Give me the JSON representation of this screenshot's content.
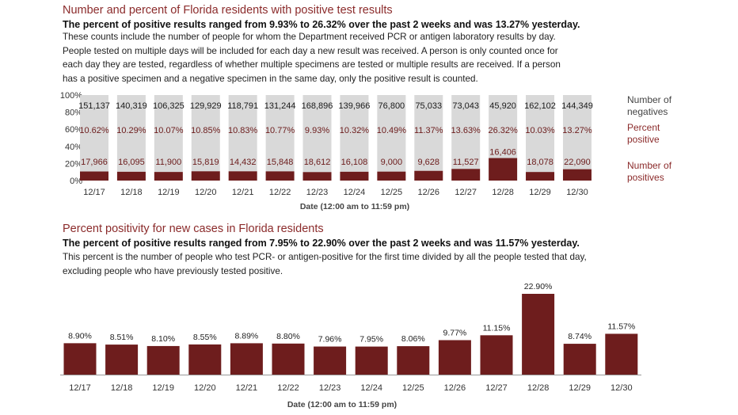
{
  "section1": {
    "heading": "Number and percent of Florida residents with positive test results",
    "subheading": "The percent of positive results ranged from 9.93% to 26.32% over the past 2 weeks and was 13.27% yesterday.",
    "body_lines": [
      "These counts include the number of people for whom the Department received PCR or antigen laboratory results by day.",
      "People tested on multiple days will be included for each day a new result was received. A person is only counted once for",
      "each day they are tested, regardless of whether multiple specimens are tested or multiple results are received. If a person",
      "has a positive specimen and a negative specimen in the same day, only the positive result is counted."
    ]
  },
  "section2": {
    "heading": "Percent positivity for new cases in Florida residents",
    "subheading": "The percent of positive results ranged from 7.95% to 22.90% over the past 2 weeks and was 11.57% yesterday.",
    "body_lines": [
      "This percent is the number of people who test PCR- or antigen-positive for the first time divided by all the people tested that day,",
      "excluding people who have previously tested positive."
    ]
  },
  "colors": {
    "positive": "#6e1d1d",
    "negative": "#d9d9d9",
    "heading": "#8b2b2b"
  },
  "chart_data": [
    {
      "type": "bar",
      "stacked": "percent",
      "categories": [
        "12/17",
        "12/18",
        "12/19",
        "12/20",
        "12/21",
        "12/22",
        "12/23",
        "12/24",
        "12/25",
        "12/26",
        "12/27",
        "12/28",
        "12/29",
        "12/30"
      ],
      "series": [
        {
          "name": "Number of positives",
          "values": [
            17966,
            16095,
            11900,
            15819,
            14432,
            15848,
            18612,
            16108,
            9000,
            9628,
            11527,
            16406,
            18078,
            22090
          ]
        },
        {
          "name": "Number of negatives",
          "values": [
            151137,
            140319,
            106325,
            129929,
            118791,
            131244,
            168896,
            139966,
            76800,
            75033,
            73043,
            45920,
            162102,
            144349
          ]
        }
      ],
      "percent_positive": {
        "name": "Percent positive",
        "labels": [
          "10.62%",
          "10.29%",
          "10.07%",
          "10.85%",
          "10.83%",
          "10.77%",
          "9.93%",
          "10.32%",
          "10.49%",
          "11.37%",
          "13.63%",
          "26.32%",
          "10.03%",
          "13.27%"
        ]
      },
      "ytick_labels": [
        "0%",
        "20%",
        "40%",
        "60%",
        "80%",
        "100%"
      ],
      "ylim": [
        0,
        100
      ],
      "xlabel": "Date (12:00 am to 11:59 pm)",
      "legend_placement": "right",
      "legend_lines": {
        "negatives": [
          "Number of",
          "negatives"
        ],
        "percent": [
          "Percent",
          "positive"
        ],
        "positives": [
          "Number of",
          "positives"
        ]
      }
    },
    {
      "type": "bar",
      "categories": [
        "12/17",
        "12/18",
        "12/19",
        "12/20",
        "12/21",
        "12/22",
        "12/23",
        "12/24",
        "12/25",
        "12/26",
        "12/27",
        "12/28",
        "12/29",
        "12/30"
      ],
      "values": [
        8.9,
        8.51,
        8.1,
        8.55,
        8.89,
        8.8,
        7.96,
        7.95,
        8.06,
        9.77,
        11.15,
        22.9,
        8.74,
        11.57
      ],
      "labels": [
        "8.90%",
        "8.51%",
        "8.10%",
        "8.55%",
        "8.89%",
        "8.80%",
        "7.96%",
        "7.95%",
        "8.06%",
        "9.77%",
        "11.15%",
        "22.90%",
        "8.74%",
        "11.57%"
      ],
      "xlabel": "Date (12:00 am to 11:59 pm)",
      "grid": false
    }
  ]
}
